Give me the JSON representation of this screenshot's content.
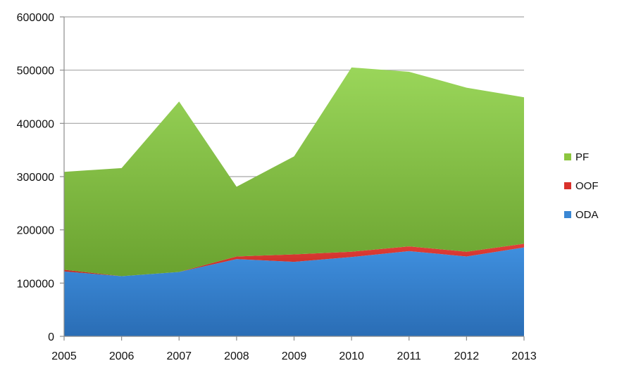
{
  "chart_data": {
    "type": "area",
    "stacked": true,
    "x": [
      "2005",
      "2006",
      "2007",
      "2008",
      "2009",
      "2010",
      "2011",
      "2012",
      "2013"
    ],
    "series": [
      {
        "name": "ODA",
        "color": "#3a87d4",
        "values": [
          122000,
          113000,
          121000,
          145000,
          140000,
          149000,
          160000,
          150000,
          167000
        ]
      },
      {
        "name": "OOF",
        "color": "#d9312b",
        "values": [
          3000,
          0,
          0,
          5000,
          14000,
          10000,
          9000,
          9000,
          7000
        ]
      },
      {
        "name": "PF",
        "color": "#8cc63f",
        "values": [
          184000,
          203000,
          320000,
          131000,
          184000,
          346000,
          328000,
          308000,
          275000
        ]
      }
    ],
    "ylim": [
      0,
      600000
    ],
    "yticks": [
      "0",
      "100000",
      "200000",
      "300000",
      "400000",
      "500000",
      "600000"
    ],
    "grid": true,
    "legend_position": "right",
    "legend": [
      "PF",
      "OOF",
      "ODA"
    ]
  }
}
